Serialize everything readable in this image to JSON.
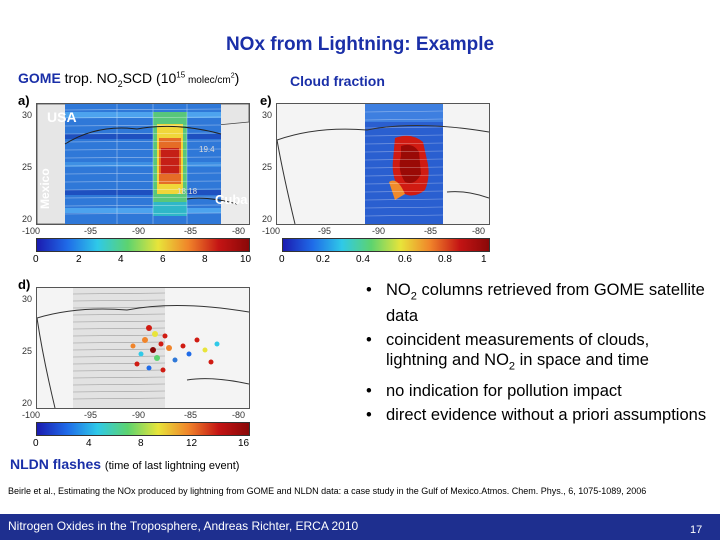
{
  "title": "NOx from Lightning: Example",
  "labels": {
    "gome_prefix": "GOME",
    "gome_rest": "trop. NO",
    "gome_sub": "2",
    "gome_scd": "SCD (10",
    "gome_sup": "15",
    "gome_units": " molec/cm",
    "gome_units_sup": "2",
    "gome_close": ")",
    "cloud": "Cloud fraction",
    "nldn": "NLDN flashes",
    "nldn_note": "(time of last lightning event)"
  },
  "panels": {
    "a": {
      "letter": "a)",
      "map_labels": [
        "USA",
        "Mexico",
        "Cuba",
        "19.4",
        "18.18"
      ]
    },
    "e": {
      "letter": "e)"
    },
    "d": {
      "letter": "d)"
    }
  },
  "axes": {
    "y_ticks": [
      "30",
      "25",
      "20"
    ],
    "x_ticks": [
      "-100",
      "-95",
      "-90",
      "-85",
      "-80"
    ]
  },
  "colorbars": {
    "no2": {
      "ticks": [
        "0",
        "2",
        "4",
        "6",
        "8",
        "10"
      ]
    },
    "cloud": {
      "ticks": [
        "0",
        "0.2",
        "0.4",
        "0.6",
        "0.8",
        "1"
      ]
    },
    "flashes": {
      "ticks": [
        "0",
        "4",
        "8",
        "12",
        "16"
      ]
    }
  },
  "bullets": [
    {
      "pre": "NO",
      "sub": "2",
      "post": " columns retrieved from GOME satellite data"
    },
    {
      "pre": "coincident measurements of clouds, lightning and NO",
      "sub": "2",
      "post": " in space and time"
    },
    {
      "pre": "no indication for pollution impact",
      "sub": "",
      "post": ""
    },
    {
      "pre": "direct evidence without a priori assumptions",
      "sub": "",
      "post": ""
    }
  ],
  "citation": "Beirle et al., Estimating the NOx produced by lightning from GOME and NLDN data: a case study in the Gulf of Mexico.Atmos. Chem. Phys., 6, 1075-1089, 2006",
  "footer": {
    "text": "Nitrogen Oxides in the Troposphere, Andreas Richter, ERCA 2010",
    "page": "17"
  }
}
